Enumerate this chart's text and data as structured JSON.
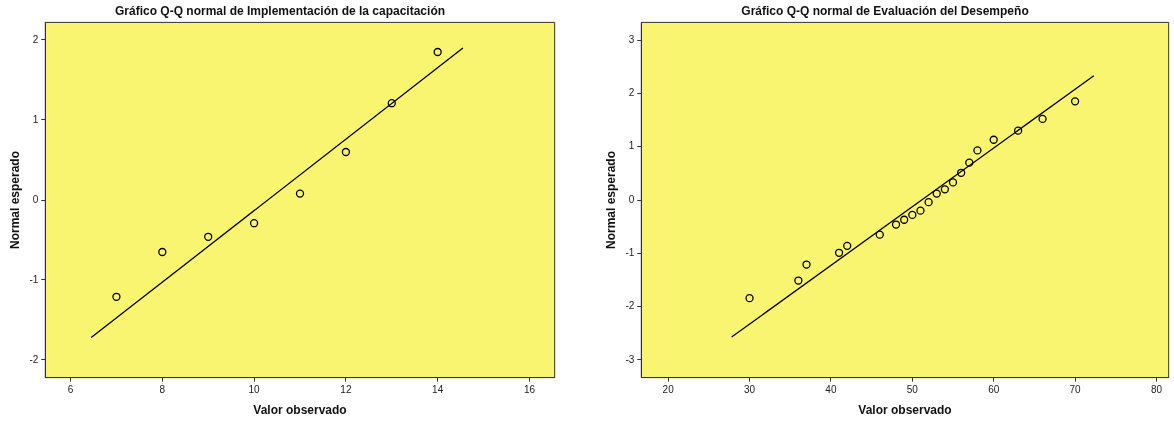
{
  "chart_data": [
    {
      "type": "scatter",
      "title": "Gráfico Q-Q normal de Implementación de la capacitación",
      "xlabel": "Valor observado",
      "ylabel": "Normal esperado",
      "xlim": [
        5.45,
        16.55
      ],
      "ylim": [
        -2.22,
        2.22
      ],
      "xticks": [
        6,
        8,
        10,
        12,
        14,
        16
      ],
      "yticks": [
        -2,
        -1,
        0,
        1,
        2
      ],
      "grid": false,
      "legend": false,
      "marker": "circle",
      "series": [
        {
          "color": "#000000",
          "x": [
            7,
            8,
            9,
            10,
            11,
            12,
            13,
            14
          ],
          "values": [
            -1.21,
            -0.65,
            -0.46,
            -0.29,
            0.08,
            0.6,
            1.21,
            1.85
          ]
        },
        {
          "type": "line",
          "color": "#000000",
          "marker": "none",
          "line_style": "solid",
          "x": [
            6.45,
            14.55
          ],
          "values": [
            -1.72,
            1.9
          ]
        }
      ]
    },
    {
      "type": "scatter",
      "title": "Gráfico Q-Q normal de Evaluación del Desempeño",
      "xlabel": "Valor observado",
      "ylabel": "Normal esperado",
      "xlim": [
        16.7,
        81.5
      ],
      "ylim": [
        -3.33,
        3.33
      ],
      "xticks": [
        20,
        30,
        40,
        50,
        60,
        70,
        80
      ],
      "yticks": [
        -3,
        -2,
        -1,
        0,
        1,
        2,
        3
      ],
      "grid": false,
      "legend": false,
      "marker": "circle",
      "series": [
        {
          "color": "#000000",
          "x": [
            30,
            36,
            37,
            41,
            42,
            46,
            48,
            49,
            50,
            51,
            52,
            53,
            54,
            55,
            56,
            57,
            58,
            60,
            63,
            66,
            70
          ],
          "values": [
            -1.84,
            -1.51,
            -1.21,
            -0.99,
            -0.86,
            -0.65,
            -0.46,
            -0.37,
            -0.28,
            -0.2,
            -0.04,
            0.12,
            0.2,
            0.33,
            0.51,
            0.7,
            0.93,
            1.13,
            1.3,
            1.52,
            1.85
          ]
        },
        {
          "type": "line",
          "color": "#000000",
          "marker": "none",
          "line_style": "solid",
          "x": [
            27.8,
            72.3
          ],
          "values": [
            -2.57,
            2.33
          ]
        }
      ]
    }
  ]
}
